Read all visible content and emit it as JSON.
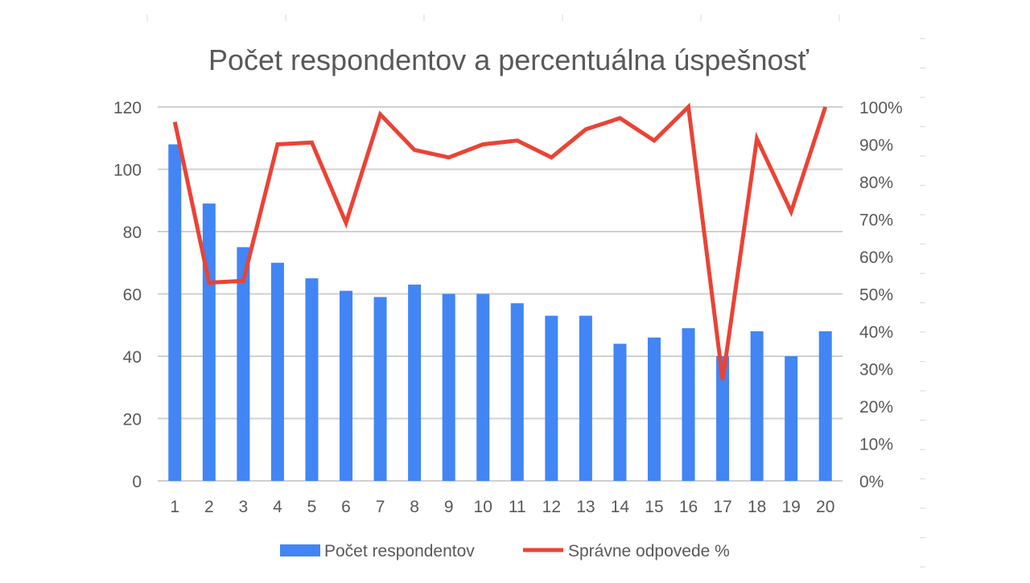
{
  "chart_data": {
    "type": "bar",
    "title": "Počet respondentov a percentuálna úspešnosť",
    "categories": [
      "1",
      "2",
      "3",
      "4",
      "5",
      "6",
      "7",
      "8",
      "9",
      "10",
      "11",
      "12",
      "13",
      "14",
      "15",
      "16",
      "17",
      "18",
      "19",
      "20"
    ],
    "series": [
      {
        "name": "Počet respondentov",
        "type": "bar",
        "axis": "left",
        "color": "#4285f4",
        "values": [
          108,
          89,
          75,
          70,
          65,
          61,
          59,
          63,
          60,
          60,
          57,
          53,
          53,
          44,
          46,
          49,
          40,
          48,
          40,
          48
        ]
      },
      {
        "name": "Správne odpovede %",
        "type": "line",
        "axis": "right",
        "color": "#ea4335",
        "values": [
          96,
          53,
          53.5,
          90,
          90.5,
          69,
          98,
          88.5,
          86.5,
          90,
          91,
          86.5,
          94,
          97,
          91,
          100,
          27,
          91.5,
          72,
          100
        ]
      }
    ],
    "y_left": {
      "ylim": [
        0,
        120
      ],
      "ticks": [
        "0",
        "20",
        "40",
        "60",
        "80",
        "100",
        "120"
      ]
    },
    "y_right": {
      "ylim": [
        0,
        100
      ],
      "ticks": [
        "0%",
        "10%",
        "20%",
        "30%",
        "40%",
        "50%",
        "60%",
        "70%",
        "80%",
        "90%",
        "100%"
      ]
    },
    "grid": true,
    "legend_position": "bottom"
  }
}
